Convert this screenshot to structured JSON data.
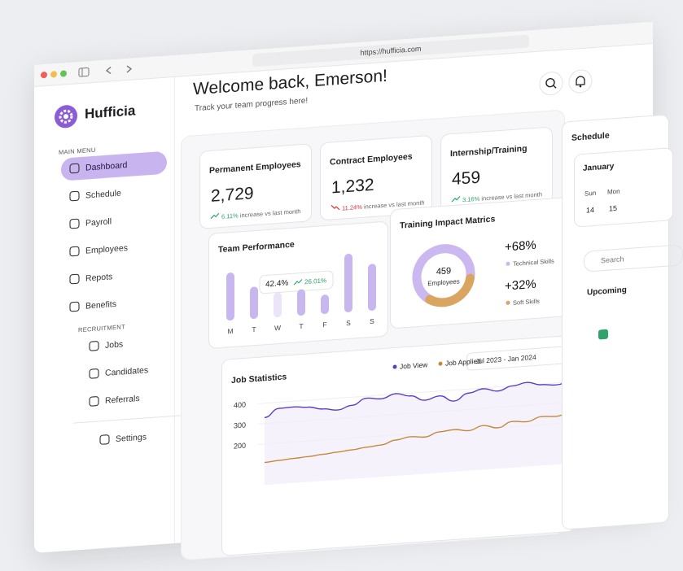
{
  "browser": {
    "url": "https://hufficia.com"
  },
  "sidebar": {
    "brand": "Hufficia",
    "sections": [
      {
        "label": "MAIN MENU",
        "items": [
          "Dashboard",
          "Schedule",
          "Payroll",
          "Employees",
          "Repots",
          "Benefits"
        ]
      },
      {
        "label": "RECRUITMENT",
        "items": [
          "Jobs",
          "Candidates",
          "Referrals"
        ]
      }
    ],
    "footer": [
      "Settings"
    ]
  },
  "header": {
    "title": "Welcome back, Emerson!",
    "subtitle": "Track your team progress here!"
  },
  "stats": [
    {
      "label": "Permanent Employees",
      "value": "2,729",
      "change": "6.11%",
      "trend": "up",
      "note": "increase vs last month"
    },
    {
      "label": "Contract Employees",
      "value": "1,232",
      "change": "11.24%",
      "trend": "down",
      "note": "increase vs last month"
    },
    {
      "label": "Internship/Training",
      "value": "459",
      "change": "3.16%",
      "trend": "up",
      "note": "increase vs last month"
    }
  ],
  "chart_data": [
    {
      "type": "bar",
      "title": "Team Performance",
      "categories": [
        "M",
        "T",
        "W",
        "T",
        "F",
        "S",
        "S"
      ],
      "values": [
        82,
        55,
        42.4,
        45,
        33,
        100,
        80
      ],
      "value_labels": [
        null,
        null,
        "42.4%",
        null,
        null,
        null,
        null
      ],
      "annotation": "26.01%",
      "color": "#c8b7ef",
      "highlight_color": "#ece5fa",
      "ylim": [
        0,
        100
      ]
    },
    {
      "type": "donut",
      "title": "Training Impact Matrics",
      "center_value": "459",
      "center_label": "Employees",
      "categories": [
        "Technical Skills",
        "Soft Skills"
      ],
      "values": [
        68,
        32
      ],
      "value_labels": [
        "+68%",
        "+32%"
      ],
      "colors": [
        "#cbb8f0",
        "#d9a561"
      ]
    },
    {
      "type": "line",
      "title": "Job Statistics",
      "range_label": "Jul 2023 - Jan 2024",
      "series": [
        {
          "name": "Job View",
          "color": "#5b3cc4",
          "values": [
            330,
            370,
            372,
            366,
            352,
            342,
            360,
            390,
            382,
            402,
            386,
            360,
            376,
            346,
            380,
            396,
            380,
            400,
            412,
            396,
            390,
            402
          ]
        },
        {
          "name": "Job Applied",
          "color": "#c4883a",
          "values": [
            110,
            115,
            120,
            124,
            130,
            136,
            142,
            150,
            156,
            175,
            186,
            180,
            200,
            206,
            196,
            216,
            200,
            226,
            220,
            240,
            236,
            250
          ]
        }
      ],
      "ylim": [
        0,
        450
      ],
      "yticks": [
        200,
        300,
        400
      ],
      "grid": true
    }
  ],
  "schedule": {
    "title": "Schedule",
    "month": "January",
    "days": [
      {
        "name": "Sun",
        "date": "14"
      },
      {
        "name": "Mon",
        "date": "15"
      }
    ],
    "search": "Search",
    "upcoming": "Upcoming"
  }
}
